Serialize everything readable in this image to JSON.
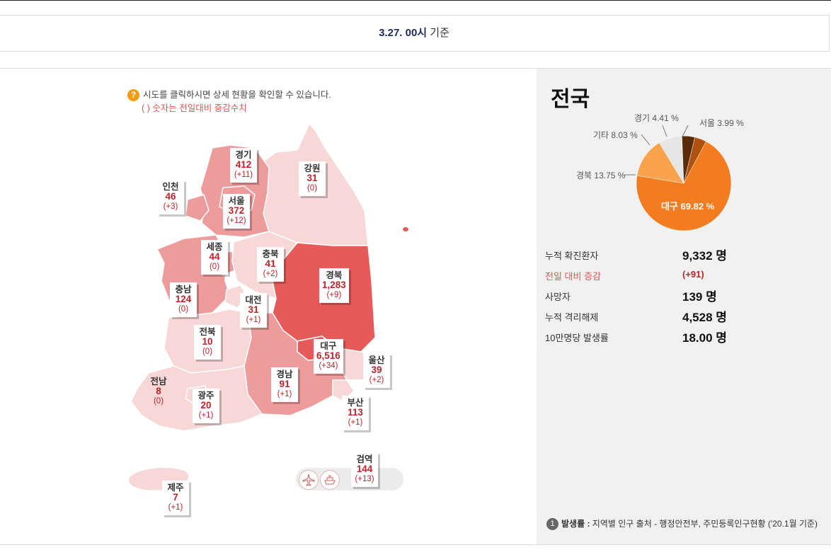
{
  "header": {
    "date_bold": "3.27. 00시",
    "date_suffix": " 기준"
  },
  "notice": {
    "line1": "시도를 클릭하시면 상세 현황을 확인할 수 있습니다.",
    "line2": "( ) 숫자는 전일대비 증감수치",
    "icon": "question-icon"
  },
  "regions": [
    {
      "id": "gyeonggi",
      "name": "경기",
      "value": "412",
      "delta": "(+11)"
    },
    {
      "id": "gangwon",
      "name": "강원",
      "value": "31",
      "delta": "(0)"
    },
    {
      "id": "incheon",
      "name": "인천",
      "value": "46",
      "delta": "(+3)"
    },
    {
      "id": "seoul",
      "name": "서울",
      "value": "372",
      "delta": "(+12)"
    },
    {
      "id": "sejong",
      "name": "세종",
      "value": "44",
      "delta": "(0)"
    },
    {
      "id": "chungbuk",
      "name": "충북",
      "value": "41",
      "delta": "(+2)"
    },
    {
      "id": "gyeongbuk",
      "name": "경북",
      "value": "1,283",
      "delta": "(+9)"
    },
    {
      "id": "chungnam",
      "name": "충남",
      "value": "124",
      "delta": "(0)"
    },
    {
      "id": "daejeon",
      "name": "대전",
      "value": "31",
      "delta": "(+1)"
    },
    {
      "id": "jeonbuk",
      "name": "전북",
      "value": "10",
      "delta": "(0)"
    },
    {
      "id": "daegu",
      "name": "대구",
      "value": "6,516",
      "delta": "(+34)"
    },
    {
      "id": "ulsan",
      "name": "울산",
      "value": "39",
      "delta": "(+2)"
    },
    {
      "id": "jeonnam",
      "name": "전남",
      "value": "8",
      "delta": "(0)"
    },
    {
      "id": "gyeongnam",
      "name": "경남",
      "value": "91",
      "delta": "(+1)"
    },
    {
      "id": "gwangju",
      "name": "광주",
      "value": "20",
      "delta": "(+1)"
    },
    {
      "id": "busan",
      "name": "부산",
      "value": "113",
      "delta": "(+1)"
    },
    {
      "id": "quarantine",
      "name": "검역",
      "value": "144",
      "delta": "(+13)"
    },
    {
      "id": "jeju",
      "name": "제주",
      "value": "7",
      "delta": "(+1)"
    }
  ],
  "travel_icons": [
    "airplane-icon",
    "ship-icon"
  ],
  "summary": {
    "title": "전국",
    "pie": [
      {
        "name": "대구",
        "label": "대구 69.82 %",
        "value": 69.82,
        "color": "#f47c20"
      },
      {
        "name": "경북",
        "label": "경북 13.75 %",
        "value": 13.75,
        "color": "#f9a34e"
      },
      {
        "name": "기타",
        "label": "기타 8.03 %",
        "value": 8.03,
        "color": "#e6e6e6"
      },
      {
        "name": "경기",
        "label": "경기 4.41 %",
        "value": 4.41,
        "color": "#5a2c0a"
      },
      {
        "name": "서울",
        "label": "서울 3.99 %",
        "value": 3.99,
        "color": "#b0520f"
      }
    ],
    "stats": [
      {
        "label": "누적 확진환자",
        "value": "9,332 명"
      },
      {
        "label": "전일 대비 증감",
        "value": "(+91)",
        "highlight": true
      },
      {
        "label": "사망자",
        "value": "139 명"
      },
      {
        "label": "누적 격리해제",
        "value": "4,528 명"
      },
      {
        "label": "10만명당 발생률",
        "value": "18.00 명"
      }
    ],
    "footnote": {
      "num": "1",
      "bold": "발생률 :",
      "text": " 지역별 인구 출처 - 행정안전부, 주민등록인구현황 ('20.1월 기준)"
    }
  },
  "colors": {
    "accent": "#c0232b",
    "orange": "#f47c20",
    "map_light": "#f8d7d7",
    "map_mid": "#ee9b9b",
    "map_dark": "#e65a5a"
  }
}
